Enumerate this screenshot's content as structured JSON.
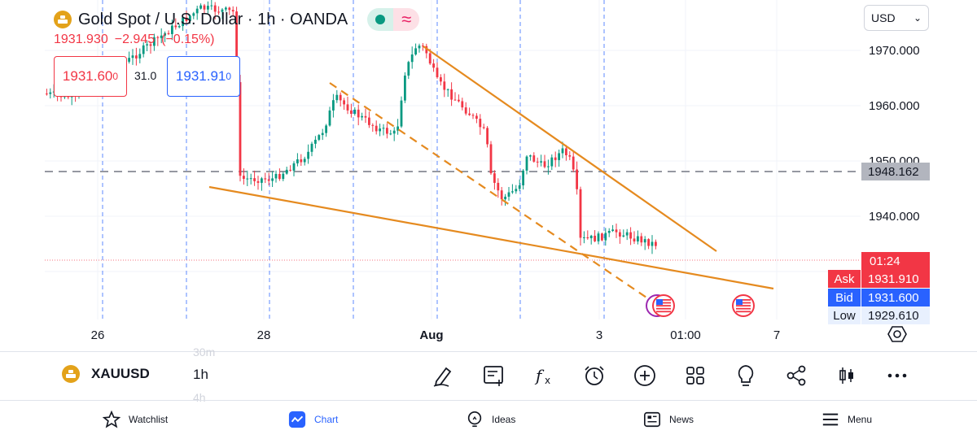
{
  "header": {
    "title": "Gold Spot / U.S. Dollar · 1h · OANDA",
    "last_price": "1931.930",
    "change": "−2.945",
    "change_pct": "(−0.15%)"
  },
  "trade_panel": {
    "sell_price": "1931.60",
    "sell_price_small": "0",
    "spread": "31.0",
    "buy_price": "1931.91",
    "buy_price_small": "0"
  },
  "currency": {
    "selected": "USD"
  },
  "price_axis": {
    "ticks": [
      "1970.000",
      "1960.000",
      "1950.000",
      "1940.000"
    ],
    "dashed_level": "1948.162",
    "countdown": "01:24",
    "ask_label": "Ask",
    "ask_price": "1931.910",
    "bid_label": "Bid",
    "bid_price": "1931.600",
    "low_label": "Low",
    "low_price": "1929.610"
  },
  "time_axis": {
    "ticks": [
      "26",
      "28",
      "Aug",
      "3",
      "01:00",
      "7"
    ]
  },
  "toolbar": {
    "symbol": "XAUUSD",
    "interval": "1h",
    "ghost_above": "30m",
    "ghost_below": "4h",
    "icons": [
      "pencil-icon",
      "notes-icon",
      "indicators-icon",
      "alert-icon",
      "add-icon",
      "layout-icon",
      "ideas-icon",
      "share-icon",
      "chart-type-icon",
      "more-icon"
    ]
  },
  "bottom_nav": {
    "items": [
      {
        "label": "Watchlist",
        "icon": "star-icon"
      },
      {
        "label": "Chart",
        "icon": "chart-icon"
      },
      {
        "label": "Ideas",
        "icon": "lightbulb-icon"
      },
      {
        "label": "News",
        "icon": "news-icon"
      },
      {
        "label": "Menu",
        "icon": "hamburger-icon"
      }
    ]
  },
  "colors": {
    "up": "#089981",
    "down": "#f23645",
    "trendline": "#e58a1f",
    "session": "#2962ff",
    "accent": "#2962ff"
  }
}
